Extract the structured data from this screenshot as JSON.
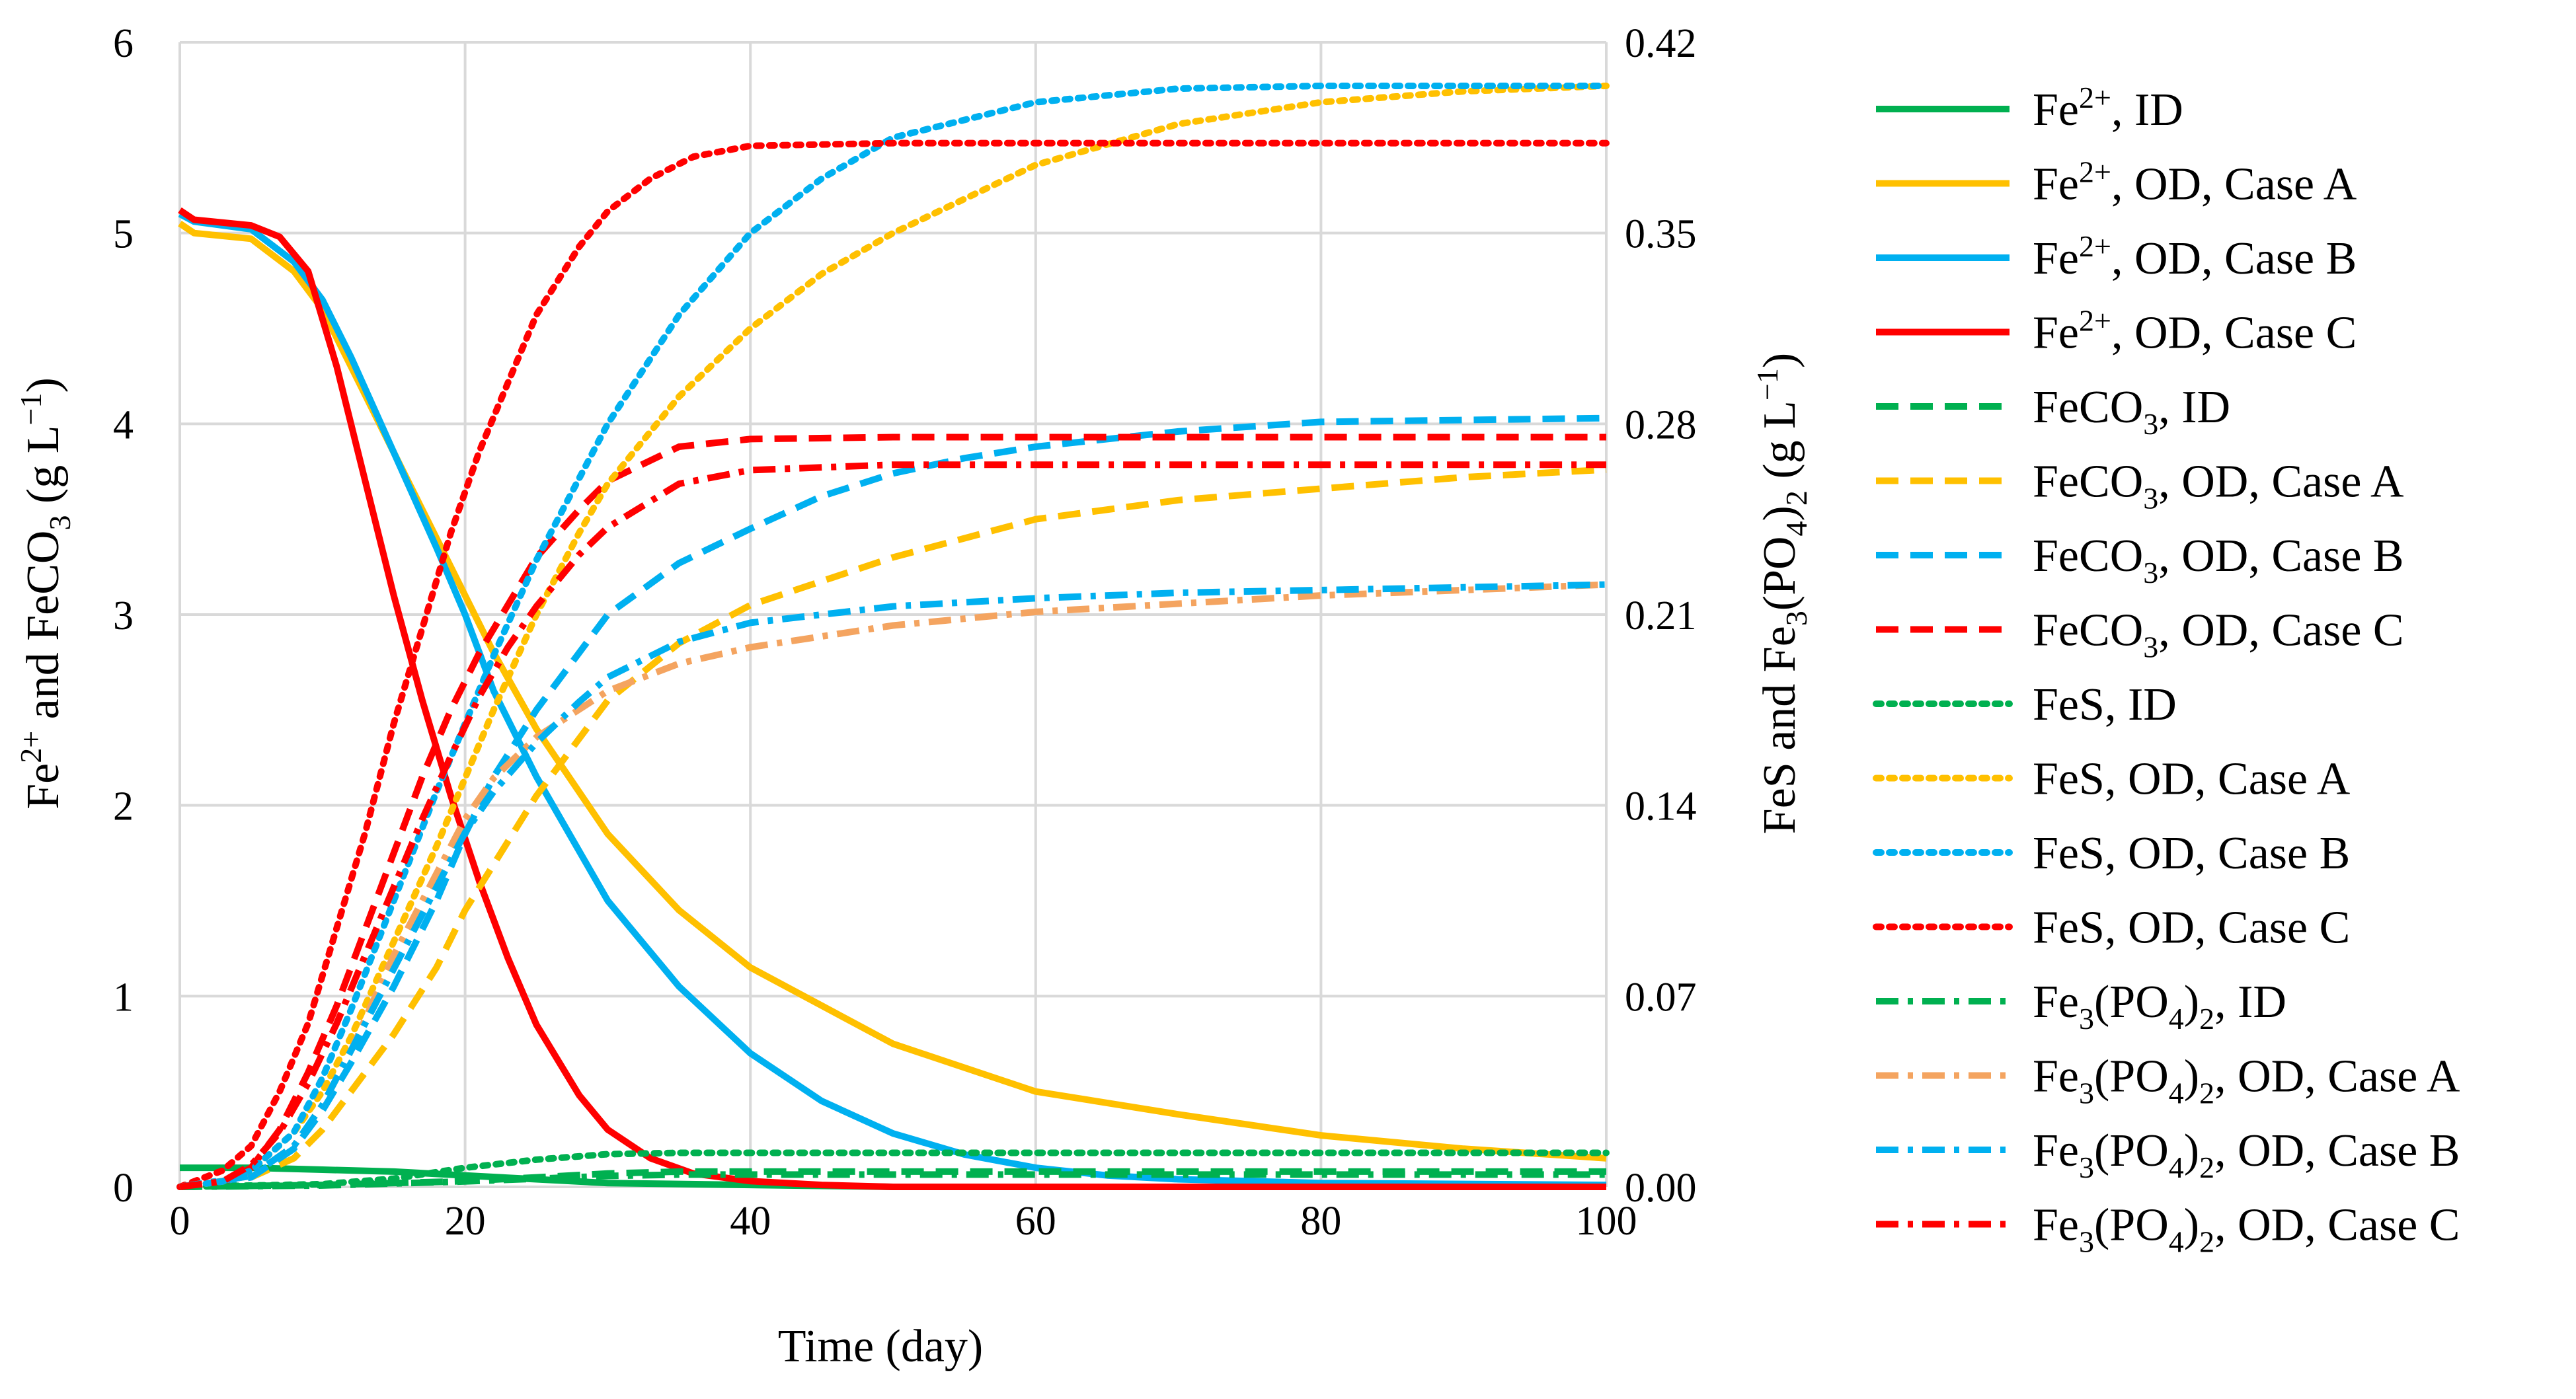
{
  "chart_data": {
    "type": "line",
    "xlabel": "Time (day)",
    "ylabel_left": {
      "pre": "Fe",
      "sup": "2+",
      "mid": "and FeCO",
      "sub": "3",
      "post": " (g L",
      "sup2": "−1",
      "end": ")"
    },
    "ylabel_right": {
      "pre": "FeS and Fe",
      "sub": "3",
      "mid": "(PO",
      "sub2": "4",
      "mid2": ")",
      "sub3": "2",
      "post": " (g L",
      "sup2": "−1",
      "end": ")"
    },
    "xlim": [
      0,
      100
    ],
    "ylim_left": [
      0,
      6
    ],
    "ylim_right": [
      0,
      0.42
    ],
    "x_ticks": [
      "0",
      "20",
      "40",
      "60",
      "80",
      "100"
    ],
    "y_left_ticks": [
      "0",
      "1",
      "2",
      "3",
      "4",
      "5",
      "6"
    ],
    "y_right_ticks": [
      "0.00",
      "0.07",
      "0.14",
      "0.21",
      "0.28",
      "0.35",
      "0.42"
    ],
    "grid": "vertical and horizontal",
    "legend_position": "right",
    "colors": {
      "ID": "#00b050",
      "A": "#ffc000",
      "B": "#00b0f0",
      "C": "#ff0000",
      "A_phosphate": "#f4a460"
    },
    "series": [
      {
        "name": "Fe2+, ID",
        "species": "Fe",
        "sup": "2+",
        "label_rest": ", ID",
        "axis": "left",
        "style": "solid",
        "color": "#00b050",
        "x": [
          0,
          5,
          10,
          15,
          20,
          25,
          30,
          40,
          50,
          100
        ],
        "y": [
          0.1,
          0.1,
          0.09,
          0.08,
          0.06,
          0.04,
          0.02,
          0.01,
          0.0,
          0.0
        ]
      },
      {
        "name": "Fe2+, OD, Case A",
        "species": "Fe",
        "sup": "2+",
        "label_rest": ", OD, Case A",
        "axis": "left",
        "style": "solid",
        "color": "#ffc000",
        "x": [
          0,
          1,
          5,
          8,
          10,
          12,
          15,
          18,
          20,
          22,
          25,
          30,
          35,
          40,
          50,
          60,
          70,
          80,
          90,
          100
        ],
        "y": [
          5.05,
          5.0,
          4.97,
          4.8,
          4.6,
          4.3,
          3.85,
          3.4,
          3.1,
          2.8,
          2.4,
          1.85,
          1.45,
          1.15,
          0.75,
          0.5,
          0.38,
          0.27,
          0.2,
          0.15
        ]
      },
      {
        "name": "Fe2+, OD, Case B",
        "species": "Fe",
        "sup": "2+",
        "label_rest": ", OD, Case B",
        "axis": "left",
        "style": "solid",
        "color": "#00b0f0",
        "x": [
          0,
          1,
          5,
          8,
          10,
          12,
          15,
          18,
          20,
          22,
          25,
          30,
          35,
          40,
          45,
          50,
          55,
          60,
          65,
          70,
          80,
          100
        ],
        "y": [
          5.1,
          5.06,
          5.02,
          4.85,
          4.65,
          4.35,
          3.85,
          3.35,
          3.0,
          2.6,
          2.15,
          1.5,
          1.05,
          0.7,
          0.45,
          0.28,
          0.17,
          0.1,
          0.06,
          0.04,
          0.02,
          0.01
        ]
      },
      {
        "name": "Fe2+, OD, Case C",
        "species": "Fe",
        "sup": "2+",
        "label_rest": ", OD, Case C",
        "axis": "left",
        "style": "solid",
        "color": "#ff0000",
        "x": [
          0,
          1,
          5,
          7,
          9,
          11,
          13,
          15,
          17,
          19,
          21,
          23,
          25,
          28,
          30,
          33,
          36,
          40,
          45,
          50,
          100
        ],
        "y": [
          5.12,
          5.07,
          5.04,
          4.98,
          4.8,
          4.3,
          3.7,
          3.1,
          2.55,
          2.05,
          1.6,
          1.2,
          0.85,
          0.48,
          0.3,
          0.15,
          0.07,
          0.03,
          0.01,
          0.0,
          0.0
        ]
      },
      {
        "name": "FeCO3, ID",
        "species": "FeCO",
        "sub": "3",
        "label_rest": ", ID",
        "axis": "left",
        "style": "dash",
        "color": "#00b050",
        "x": [
          0,
          10,
          20,
          25,
          30,
          35,
          40,
          100
        ],
        "y": [
          0,
          0.01,
          0.03,
          0.05,
          0.07,
          0.08,
          0.08,
          0.08
        ]
      },
      {
        "name": "FeCO3, OD, Case A",
        "species": "FeCO",
        "sub": "3",
        "label_rest": ", OD, Case A",
        "axis": "left",
        "style": "dash",
        "color": "#ffc000",
        "x": [
          0,
          5,
          8,
          10,
          12,
          15,
          18,
          20,
          25,
          30,
          35,
          40,
          50,
          60,
          70,
          80,
          90,
          100
        ],
        "y": [
          0,
          0.05,
          0.15,
          0.3,
          0.5,
          0.8,
          1.15,
          1.45,
          2.05,
          2.55,
          2.85,
          3.05,
          3.3,
          3.5,
          3.6,
          3.66,
          3.72,
          3.76
        ]
      },
      {
        "name": "FeCO3, OD, Case B",
        "species": "FeCO",
        "sub": "3",
        "label_rest": ", OD, Case B",
        "axis": "left",
        "style": "dash",
        "color": "#00b0f0",
        "x": [
          0,
          5,
          8,
          10,
          12,
          15,
          18,
          20,
          22,
          25,
          28,
          30,
          35,
          40,
          45,
          50,
          55,
          60,
          70,
          80,
          100
        ],
        "y": [
          0,
          0.05,
          0.2,
          0.4,
          0.65,
          1.05,
          1.5,
          1.85,
          2.15,
          2.5,
          2.8,
          3.0,
          3.27,
          3.45,
          3.62,
          3.74,
          3.82,
          3.88,
          3.96,
          4.01,
          4.03
        ]
      },
      {
        "name": "FeCO3, OD, Case C",
        "species": "FeCO",
        "sub": "3",
        "label_rest": ", OD, Case C",
        "axis": "left",
        "style": "dash",
        "color": "#ff0000",
        "x": [
          0,
          3,
          5,
          7,
          9,
          11,
          13,
          15,
          17,
          19,
          21,
          23,
          25,
          28,
          30,
          35,
          40,
          50,
          100
        ],
        "y": [
          0,
          0.02,
          0.1,
          0.3,
          0.6,
          0.95,
          1.35,
          1.75,
          2.15,
          2.5,
          2.8,
          3.05,
          3.3,
          3.55,
          3.7,
          3.88,
          3.92,
          3.93,
          3.93
        ]
      },
      {
        "name": "FeS, ID",
        "species": "FeS",
        "label_rest": ", ID",
        "axis": "right",
        "style": "dot",
        "color": "#00b050",
        "x": [
          0,
          10,
          15,
          20,
          25,
          30,
          35,
          40,
          100
        ],
        "y": [
          0,
          0.001,
          0.003,
          0.007,
          0.01,
          0.012,
          0.0125,
          0.0125,
          0.0125
        ]
      },
      {
        "name": "FeS, OD, Case A",
        "species": "FeS",
        "label_rest": ", OD, Case A",
        "axis": "right",
        "style": "dot",
        "color": "#ffc000",
        "x": [
          0,
          3,
          5,
          8,
          10,
          12,
          15,
          18,
          20,
          22,
          25,
          28,
          30,
          35,
          40,
          45,
          50,
          60,
          70,
          80,
          90,
          100
        ],
        "y": [
          0,
          0.002,
          0.006,
          0.02,
          0.035,
          0.055,
          0.09,
          0.125,
          0.15,
          0.175,
          0.21,
          0.24,
          0.258,
          0.29,
          0.315,
          0.335,
          0.35,
          0.375,
          0.39,
          0.398,
          0.402,
          0.404
        ]
      },
      {
        "name": "FeS, OD, Case B",
        "species": "FeS",
        "label_rest": ", OD, Case B",
        "axis": "right",
        "style": "dot",
        "color": "#00b0f0",
        "x": [
          0,
          3,
          5,
          8,
          10,
          12,
          15,
          18,
          20,
          22,
          25,
          28,
          30,
          35,
          40,
          45,
          50,
          60,
          70,
          80,
          100
        ],
        "y": [
          0,
          0.002,
          0.006,
          0.02,
          0.04,
          0.065,
          0.105,
          0.145,
          0.17,
          0.195,
          0.23,
          0.26,
          0.28,
          0.32,
          0.35,
          0.37,
          0.385,
          0.398,
          0.403,
          0.404,
          0.404
        ]
      },
      {
        "name": "FeS, OD, Case C",
        "species": "FeS",
        "label_rest": ", OD, Case C",
        "axis": "right",
        "style": "dot",
        "color": "#ff0000",
        "x": [
          0,
          3,
          5,
          7,
          9,
          11,
          13,
          15,
          17,
          19,
          21,
          23,
          25,
          28,
          30,
          33,
          36,
          40,
          50,
          100
        ],
        "y": [
          0,
          0.006,
          0.015,
          0.035,
          0.06,
          0.095,
          0.13,
          0.17,
          0.205,
          0.24,
          0.27,
          0.295,
          0.32,
          0.345,
          0.358,
          0.37,
          0.378,
          0.382,
          0.383,
          0.383
        ]
      },
      {
        "name": "Fe3(PO4)2, ID",
        "species": "Fe",
        "sub": "3",
        "species2": "(PO",
        "sub2": "4",
        "species3": ")",
        "sub3": "2",
        "label_rest": ", ID",
        "axis": "right",
        "style": "dashdot",
        "color": "#00b050",
        "x": [
          0,
          10,
          20,
          25,
          30,
          35,
          40,
          100
        ],
        "y": [
          0,
          0.0005,
          0.002,
          0.003,
          0.004,
          0.0045,
          0.0045,
          0.0045
        ]
      },
      {
        "name": "Fe3(PO4)2, OD, Case A",
        "species": "Fe",
        "sub": "3",
        "species2": "(PO",
        "sub2": "4",
        "species3": ")",
        "sub3": "2",
        "label_rest": ", OD, Case A",
        "axis": "right",
        "style": "dashdot",
        "color": "#f4a460",
        "x": [
          0,
          5,
          8,
          10,
          12,
          15,
          18,
          20,
          22,
          25,
          30,
          35,
          40,
          50,
          60,
          70,
          80,
          90,
          100
        ],
        "y": [
          0,
          0.004,
          0.015,
          0.03,
          0.05,
          0.085,
          0.115,
          0.135,
          0.15,
          0.165,
          0.182,
          0.192,
          0.198,
          0.206,
          0.211,
          0.214,
          0.217,
          0.219,
          0.221
        ]
      },
      {
        "name": "Fe3(PO4)2, OD, Case B",
        "species": "Fe",
        "sub": "3",
        "species2": "(PO",
        "sub2": "4",
        "species3": ")",
        "sub3": "2",
        "label_rest": ", OD, Case B",
        "axis": "right",
        "style": "dashdot",
        "color": "#00b0f0",
        "x": [
          0,
          5,
          8,
          10,
          12,
          15,
          18,
          20,
          22,
          25,
          28,
          30,
          35,
          40,
          50,
          60,
          70,
          80,
          100
        ],
        "y": [
          0,
          0.004,
          0.015,
          0.03,
          0.05,
          0.08,
          0.11,
          0.13,
          0.145,
          0.163,
          0.178,
          0.187,
          0.2,
          0.207,
          0.213,
          0.216,
          0.218,
          0.219,
          0.221
        ]
      },
      {
        "name": "Fe3(PO4)2, OD, Case C",
        "species": "Fe",
        "sub": "3",
        "species2": "(PO",
        "sub2": "4",
        "species3": ")",
        "sub3": "2",
        "label_rest": ", OD, Case C",
        "axis": "right",
        "style": "dashdot",
        "color": "#ff0000",
        "x": [
          0,
          3,
          5,
          7,
          9,
          11,
          13,
          15,
          17,
          19,
          21,
          23,
          25,
          28,
          30,
          35,
          40,
          50,
          100
        ],
        "y": [
          0,
          0.002,
          0.008,
          0.02,
          0.038,
          0.06,
          0.085,
          0.11,
          0.135,
          0.158,
          0.18,
          0.198,
          0.213,
          0.232,
          0.242,
          0.258,
          0.263,
          0.265,
          0.265
        ]
      }
    ]
  }
}
